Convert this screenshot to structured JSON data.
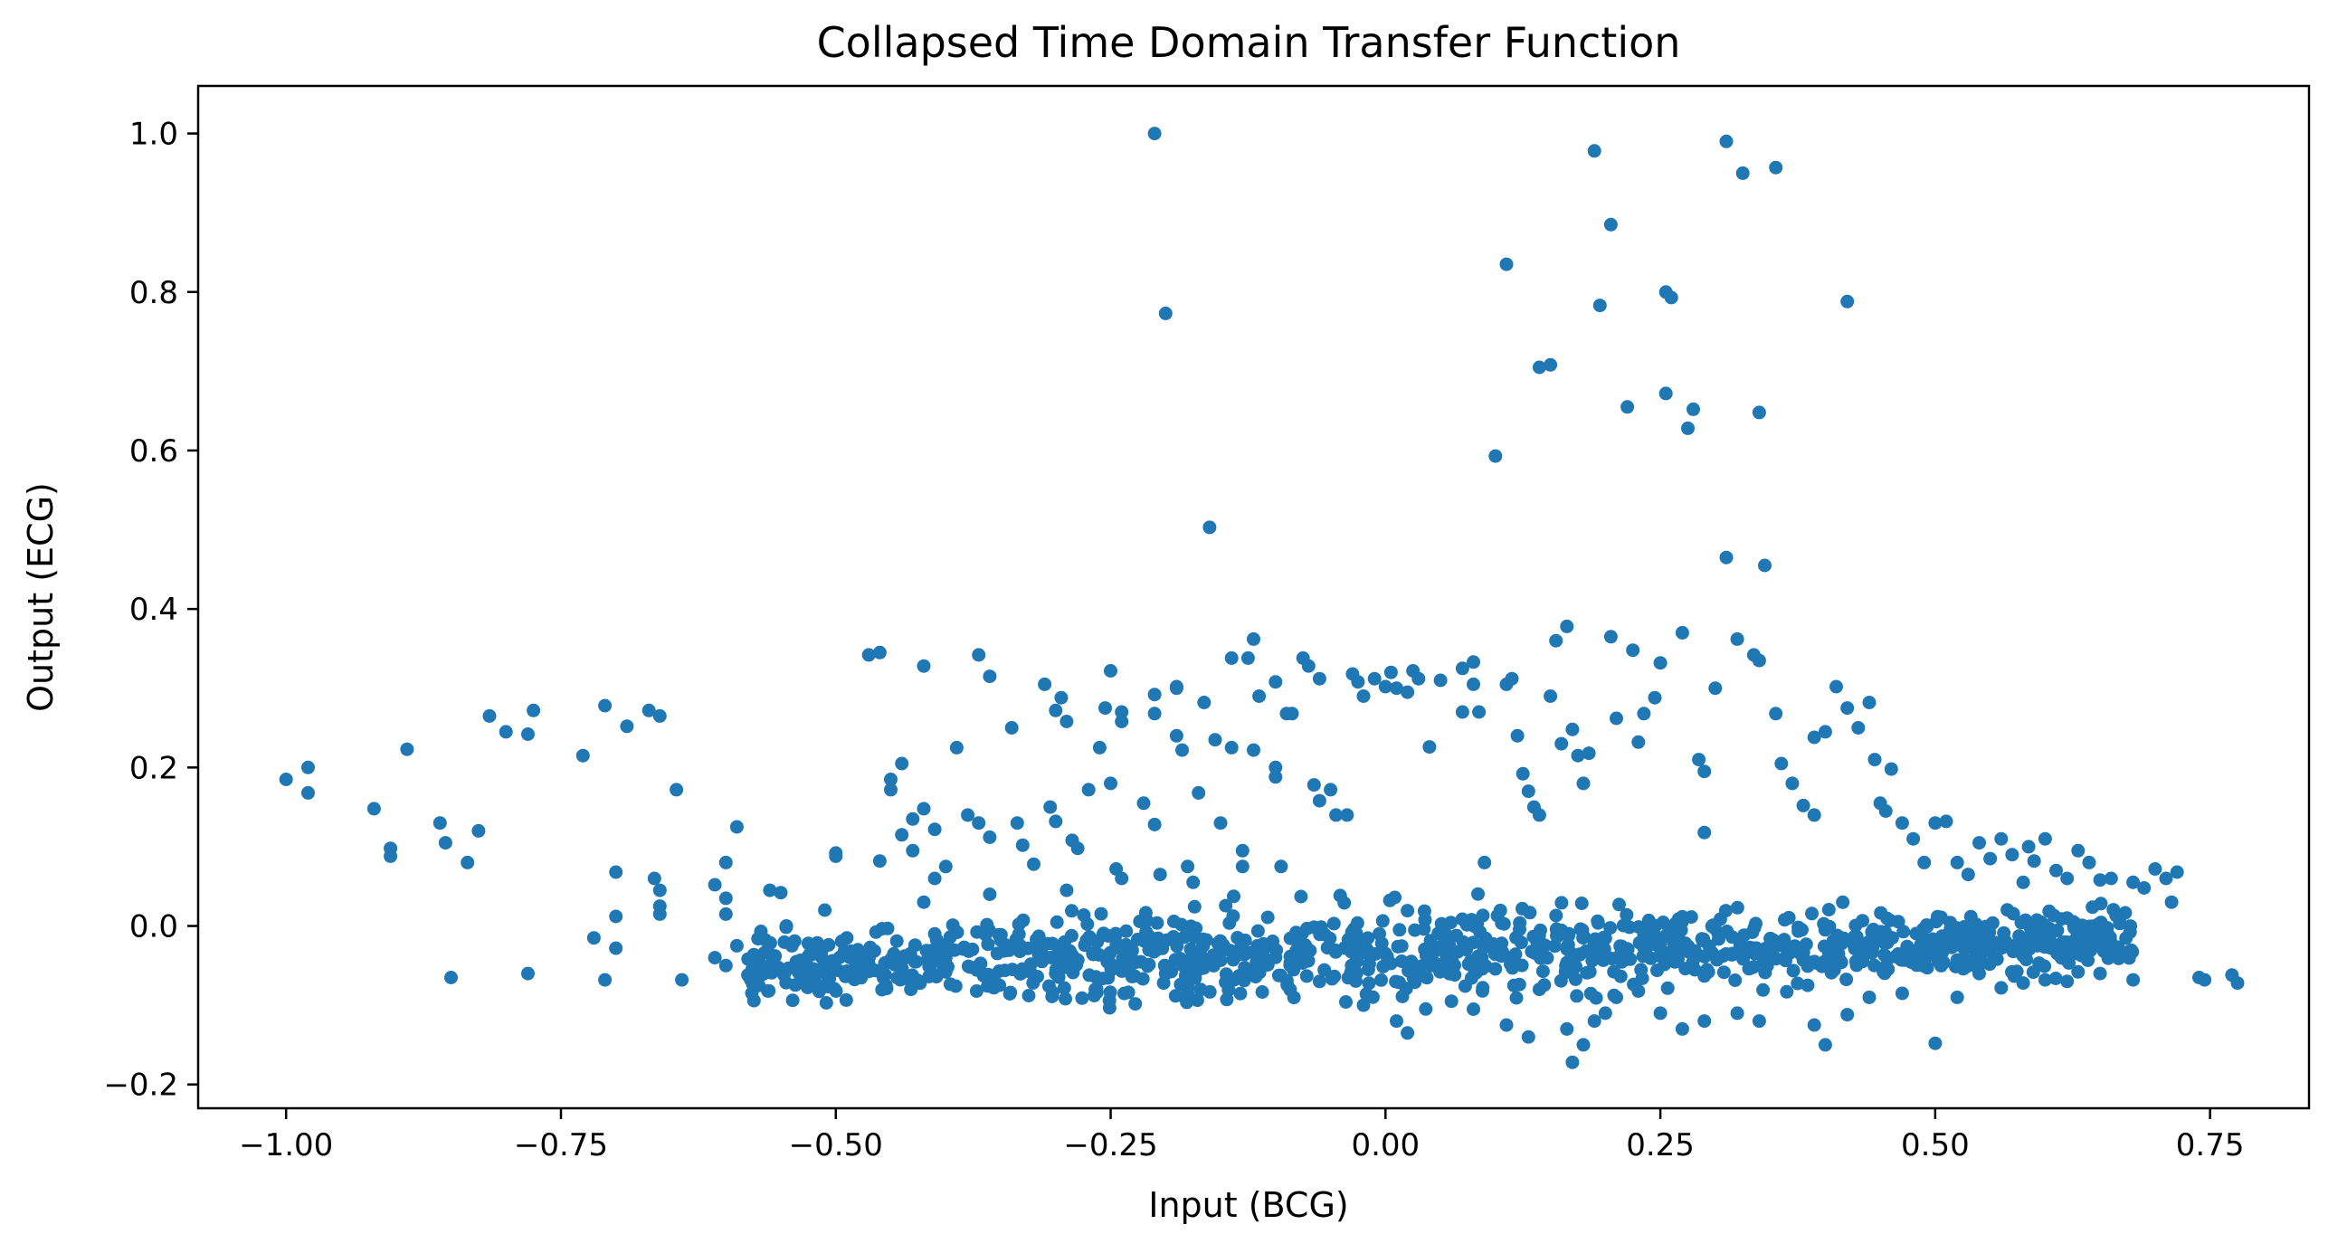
{
  "chart_data": {
    "type": "scatter",
    "title": "Collapsed Time Domain Transfer Function",
    "xlabel": "Input (BCG)",
    "ylabel": "Output (ECG)",
    "xlim": [
      -1.08,
      0.84
    ],
    "ylim": [
      -0.23,
      1.06
    ],
    "xticks": [
      -1.0,
      -0.75,
      -0.5,
      -0.25,
      0.0,
      0.25,
      0.5,
      0.75
    ],
    "xtick_labels": [
      "−1.00",
      "−0.75",
      "−0.50",
      "−0.25",
      "0.00",
      "0.25",
      "0.50",
      "0.75"
    ],
    "yticks": [
      -0.2,
      0.0,
      0.2,
      0.4,
      0.6,
      0.8,
      1.0
    ],
    "ytick_labels": [
      "−0.2",
      "0.0",
      "0.2",
      "0.4",
      "0.6",
      "0.8",
      "1.0"
    ],
    "grid": false,
    "legend": "none",
    "marker_color": "#1f77b4",
    "series": [
      {
        "points": [
          [
            -1.0,
            0.185
          ],
          [
            -0.98,
            0.2
          ],
          [
            -0.98,
            0.168
          ],
          [
            -0.92,
            0.148
          ],
          [
            -0.905,
            0.098
          ],
          [
            -0.905,
            0.088
          ],
          [
            -0.89,
            0.223
          ],
          [
            -0.86,
            0.13
          ],
          [
            -0.855,
            0.105
          ],
          [
            -0.85,
            -0.065
          ],
          [
            -0.835,
            0.08
          ],
          [
            -0.825,
            0.12
          ],
          [
            -0.815,
            0.265
          ],
          [
            -0.8,
            0.245
          ],
          [
            -0.78,
            0.242
          ],
          [
            -0.775,
            0.272
          ],
          [
            -0.78,
            -0.06
          ],
          [
            -0.73,
            0.215
          ],
          [
            -0.72,
            -0.015
          ],
          [
            -0.7,
            0.068
          ],
          [
            -0.7,
            0.012
          ],
          [
            -0.71,
            0.278
          ],
          [
            -0.69,
            0.252
          ],
          [
            -0.71,
            -0.068
          ],
          [
            -0.7,
            -0.028
          ],
          [
            -0.67,
            0.272
          ],
          [
            -0.66,
            0.265
          ],
          [
            -0.645,
            0.172
          ],
          [
            -0.665,
            0.06
          ],
          [
            -0.66,
            0.045
          ],
          [
            -0.66,
            0.025
          ],
          [
            -0.66,
            0.015
          ],
          [
            -0.64,
            -0.068
          ],
          [
            -0.59,
            0.125
          ],
          [
            -0.6,
            0.08
          ],
          [
            -0.61,
            0.052
          ],
          [
            -0.6,
            0.035
          ],
          [
            -0.6,
            0.015
          ],
          [
            -0.59,
            -0.025
          ],
          [
            -0.61,
            -0.04
          ],
          [
            -0.6,
            -0.05
          ],
          [
            -0.58,
            -0.062
          ],
          [
            -0.57,
            -0.075
          ],
          [
            -0.56,
            0.045
          ],
          [
            -0.55,
            0.042
          ],
          [
            -0.545,
            0.0
          ],
          [
            -0.54,
            -0.025
          ],
          [
            -0.53,
            -0.045
          ],
          [
            -0.52,
            -0.055
          ],
          [
            -0.5,
            0.092
          ],
          [
            -0.5,
            0.088
          ],
          [
            -0.51,
            0.02
          ],
          [
            -0.49,
            -0.015
          ],
          [
            -0.48,
            -0.03
          ],
          [
            -0.47,
            -0.048
          ],
          [
            -0.47,
            0.342
          ],
          [
            -0.46,
            0.345
          ],
          [
            -0.46,
            0.082
          ],
          [
            -0.45,
            0.185
          ],
          [
            -0.45,
            0.172
          ],
          [
            -0.44,
            0.115
          ],
          [
            -0.44,
            0.205
          ],
          [
            -0.43,
            0.135
          ],
          [
            -0.43,
            0.095
          ],
          [
            -0.42,
            0.03
          ],
          [
            -0.41,
            -0.01
          ],
          [
            -0.4,
            -0.04
          ],
          [
            -0.42,
            0.328
          ],
          [
            -0.42,
            0.148
          ],
          [
            -0.41,
            0.122
          ],
          [
            -0.4,
            0.075
          ],
          [
            -0.41,
            0.06
          ],
          [
            -0.39,
            0.225
          ],
          [
            -0.38,
            0.14
          ],
          [
            -0.37,
            0.13
          ],
          [
            -0.37,
            0.342
          ],
          [
            -0.36,
            0.315
          ],
          [
            -0.36,
            0.112
          ],
          [
            -0.36,
            0.04
          ],
          [
            -0.35,
            -0.018
          ],
          [
            -0.34,
            0.25
          ],
          [
            -0.335,
            0.13
          ],
          [
            -0.33,
            0.102
          ],
          [
            -0.32,
            0.078
          ],
          [
            -0.31,
            0.305
          ],
          [
            -0.3,
            0.272
          ],
          [
            -0.295,
            0.288
          ],
          [
            -0.29,
            0.258
          ],
          [
            -0.305,
            0.15
          ],
          [
            -0.3,
            0.132
          ],
          [
            -0.285,
            0.108
          ],
          [
            -0.28,
            0.098
          ],
          [
            -0.29,
            0.045
          ],
          [
            -0.27,
            0.172
          ],
          [
            -0.26,
            0.225
          ],
          [
            -0.25,
            0.18
          ],
          [
            -0.255,
            0.275
          ],
          [
            -0.25,
            0.322
          ],
          [
            -0.24,
            0.27
          ],
          [
            -0.24,
            0.258
          ],
          [
            -0.245,
            0.072
          ],
          [
            -0.24,
            0.06
          ],
          [
            -0.22,
            0.155
          ],
          [
            -0.21,
            0.128
          ],
          [
            -0.21,
            0.268
          ],
          [
            -0.21,
            0.292
          ],
          [
            -0.205,
            0.065
          ],
          [
            -0.19,
            0.302
          ],
          [
            -0.19,
            0.24
          ],
          [
            -0.185,
            0.222
          ],
          [
            -0.19,
            0.3
          ],
          [
            -0.18,
            0.075
          ],
          [
            -0.175,
            0.055
          ],
          [
            -0.17,
            0.168
          ],
          [
            -0.21,
            1.0
          ],
          [
            -0.2,
            0.773
          ],
          [
            -0.16,
            0.503
          ],
          [
            -0.165,
            0.282
          ],
          [
            -0.155,
            0.235
          ],
          [
            -0.15,
            0.13
          ],
          [
            -0.14,
            0.338
          ],
          [
            -0.14,
            0.225
          ],
          [
            -0.13,
            0.095
          ],
          [
            -0.13,
            0.075
          ],
          [
            -0.125,
            0.338
          ],
          [
            -0.12,
            0.362
          ],
          [
            -0.12,
            0.222
          ],
          [
            -0.115,
            0.29
          ],
          [
            -0.1,
            0.308
          ],
          [
            -0.1,
            0.2
          ],
          [
            -0.1,
            0.188
          ],
          [
            -0.095,
            0.075
          ],
          [
            -0.09,
            0.268
          ],
          [
            -0.085,
            0.268
          ],
          [
            -0.075,
            0.338
          ],
          [
            -0.07,
            0.328
          ],
          [
            -0.06,
            0.312
          ],
          [
            -0.065,
            0.178
          ],
          [
            -0.06,
            0.158
          ],
          [
            -0.05,
            0.172
          ],
          [
            -0.045,
            0.14
          ],
          [
            -0.035,
            0.14
          ],
          [
            -0.03,
            0.318
          ],
          [
            -0.025,
            0.308
          ],
          [
            -0.02,
            0.29
          ],
          [
            -0.01,
            0.312
          ],
          [
            0.0,
            0.302
          ],
          [
            0.005,
            0.32
          ],
          [
            0.01,
            0.3
          ],
          [
            0.02,
            0.295
          ],
          [
            0.025,
            0.322
          ],
          [
            0.03,
            0.312
          ],
          [
            0.04,
            0.226
          ],
          [
            0.05,
            0.31
          ],
          [
            0.07,
            0.325
          ],
          [
            0.07,
            0.27
          ],
          [
            0.08,
            0.333
          ],
          [
            0.08,
            0.305
          ],
          [
            0.085,
            0.27
          ],
          [
            0.09,
            0.08
          ],
          [
            0.1,
            0.593
          ],
          [
            0.11,
            0.835
          ],
          [
            0.115,
            0.312
          ],
          [
            0.11,
            0.305
          ],
          [
            0.12,
            0.24
          ],
          [
            0.125,
            0.192
          ],
          [
            0.13,
            0.17
          ],
          [
            0.135,
            0.15
          ],
          [
            0.14,
            0.14
          ],
          [
            0.14,
            0.705
          ],
          [
            0.15,
            0.708
          ],
          [
            0.15,
            0.29
          ],
          [
            0.155,
            0.36
          ],
          [
            0.16,
            0.23
          ],
          [
            0.165,
            0.378
          ],
          [
            0.17,
            0.248
          ],
          [
            0.175,
            0.215
          ],
          [
            0.18,
            0.18
          ],
          [
            0.185,
            0.218
          ],
          [
            0.19,
            0.978
          ],
          [
            0.195,
            0.783
          ],
          [
            0.205,
            0.885
          ],
          [
            0.205,
            0.365
          ],
          [
            0.21,
            0.262
          ],
          [
            0.22,
            0.655
          ],
          [
            0.225,
            0.348
          ],
          [
            0.23,
            0.232
          ],
          [
            0.235,
            0.268
          ],
          [
            0.245,
            0.288
          ],
          [
            0.25,
            0.332
          ],
          [
            0.255,
            0.8
          ],
          [
            0.26,
            0.793
          ],
          [
            0.255,
            0.672
          ],
          [
            0.27,
            0.37
          ],
          [
            0.275,
            0.628
          ],
          [
            0.28,
            0.652
          ],
          [
            0.285,
            0.21
          ],
          [
            0.29,
            0.195
          ],
          [
            0.29,
            0.118
          ],
          [
            0.3,
            0.3
          ],
          [
            0.31,
            0.99
          ],
          [
            0.31,
            0.465
          ],
          [
            0.32,
            0.362
          ],
          [
            0.325,
            0.95
          ],
          [
            0.335,
            0.342
          ],
          [
            0.34,
            0.335
          ],
          [
            0.34,
            0.648
          ],
          [
            0.345,
            0.455
          ],
          [
            0.355,
            0.957
          ],
          [
            0.355,
            0.268
          ],
          [
            0.36,
            0.205
          ],
          [
            0.37,
            0.18
          ],
          [
            0.38,
            0.152
          ],
          [
            0.39,
            0.14
          ],
          [
            0.39,
            0.238
          ],
          [
            0.4,
            0.245
          ],
          [
            0.41,
            0.302
          ],
          [
            0.42,
            0.788
          ],
          [
            0.42,
            0.275
          ],
          [
            0.43,
            0.25
          ],
          [
            0.44,
            0.282
          ],
          [
            0.445,
            0.21
          ],
          [
            0.45,
            0.155
          ],
          [
            0.455,
            0.145
          ],
          [
            0.46,
            0.198
          ],
          [
            0.47,
            0.13
          ],
          [
            0.48,
            0.11
          ],
          [
            0.49,
            0.08
          ],
          [
            0.5,
            0.13
          ],
          [
            0.51,
            0.132
          ],
          [
            0.52,
            0.08
          ],
          [
            0.53,
            0.065
          ],
          [
            0.54,
            0.105
          ],
          [
            0.55,
            0.085
          ],
          [
            0.56,
            0.11
          ],
          [
            0.57,
            0.09
          ],
          [
            0.58,
            0.055
          ],
          [
            0.585,
            0.1
          ],
          [
            0.59,
            0.082
          ],
          [
            0.6,
            0.11
          ],
          [
            0.61,
            0.07
          ],
          [
            0.62,
            0.06
          ],
          [
            0.63,
            0.095
          ],
          [
            0.64,
            0.08
          ],
          [
            0.65,
            0.058
          ],
          [
            0.66,
            0.06
          ],
          [
            0.68,
            0.055
          ],
          [
            0.69,
            0.048
          ],
          [
            0.7,
            0.072
          ],
          [
            0.71,
            0.06
          ],
          [
            0.715,
            0.03
          ],
          [
            0.72,
            0.068
          ],
          [
            0.74,
            -0.065
          ],
          [
            0.745,
            -0.068
          ],
          [
            0.77,
            -0.062
          ],
          [
            0.775,
            -0.072
          ],
          [
            0.68,
            -0.068
          ],
          [
            0.65,
            -0.06
          ],
          [
            0.63,
            -0.058
          ],
          [
            0.62,
            -0.07
          ],
          [
            0.6,
            -0.068
          ],
          [
            0.58,
            -0.072
          ],
          [
            0.56,
            -0.078
          ],
          [
            0.54,
            -0.06
          ],
          [
            0.52,
            -0.09
          ],
          [
            0.5,
            -0.148
          ],
          [
            0.47,
            -0.085
          ],
          [
            0.44,
            -0.09
          ],
          [
            0.42,
            -0.112
          ],
          [
            0.4,
            -0.15
          ],
          [
            0.39,
            -0.125
          ],
          [
            0.34,
            -0.12
          ],
          [
            0.32,
            -0.11
          ],
          [
            0.29,
            -0.12
          ],
          [
            0.27,
            -0.13
          ],
          [
            0.25,
            -0.11
          ],
          [
            0.23,
            -0.082
          ],
          [
            0.21,
            -0.09
          ],
          [
            0.2,
            -0.11
          ],
          [
            0.19,
            -0.12
          ],
          [
            0.18,
            -0.15
          ],
          [
            0.17,
            -0.172
          ],
          [
            0.165,
            -0.13
          ],
          [
            0.14,
            -0.08
          ],
          [
            0.13,
            -0.14
          ],
          [
            0.11,
            -0.125
          ],
          [
            0.08,
            -0.105
          ],
          [
            0.06,
            -0.095
          ],
          [
            0.02,
            -0.135
          ],
          [
            0.01,
            -0.12
          ],
          [
            -0.02,
            -0.1
          ],
          [
            -0.06,
            -0.07
          ],
          [
            -0.12,
            -0.06
          ],
          [
            -0.2,
            -0.06
          ],
          [
            -0.3,
            -0.06
          ],
          [
            -0.4,
            -0.058
          ],
          [
            -0.48,
            -0.06
          ],
          [
            -0.52,
            -0.065
          ],
          [
            -0.56,
            -0.05
          ]
        ]
      }
    ]
  }
}
